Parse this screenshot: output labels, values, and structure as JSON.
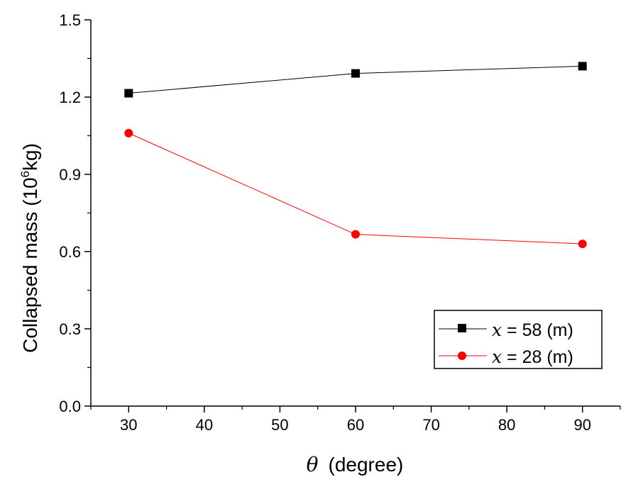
{
  "chart_data": {
    "type": "line",
    "title": "",
    "xlabel": {
      "symbol": "θ",
      "text": "(degree)"
    },
    "ylabel": {
      "prefix": "Collapsed mass (10",
      "exponent": "6",
      "suffix": "kg)"
    },
    "x": [
      30,
      60,
      90
    ],
    "xlim": [
      25,
      95
    ],
    "ylim": [
      0.0,
      1.5
    ],
    "xticks": [
      30,
      40,
      50,
      60,
      70,
      80,
      90
    ],
    "yticks": [
      "0.0",
      "0.3",
      "0.6",
      "0.9",
      "1.2",
      "1.5"
    ],
    "grid": false,
    "legend_position": "bottom-right",
    "series": [
      {
        "legend_var": "x",
        "legend_value": " = 58 (m)",
        "values": [
          1.215,
          1.292,
          1.32
        ],
        "color": "#000000",
        "marker": "square"
      },
      {
        "legend_var": "x",
        "legend_value": " = 28 (m)",
        "values": [
          1.06,
          0.667,
          0.63
        ],
        "color": "#ff0000",
        "marker": "circle"
      }
    ]
  }
}
